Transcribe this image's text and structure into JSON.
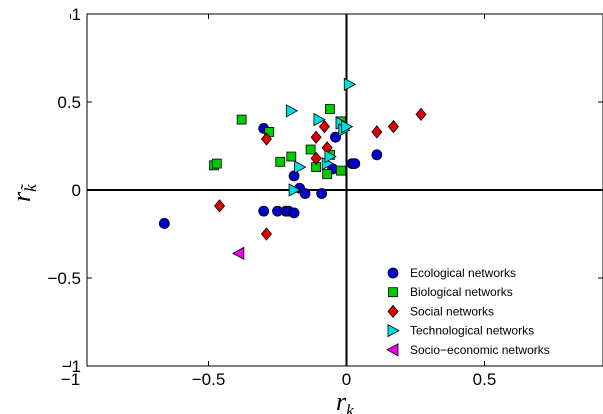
{
  "chart_data": {
    "type": "scatter",
    "title": "",
    "xlabel": "r",
    "xlabel_sub": "k",
    "ylabel": "r",
    "ylabel_sub": "k̃",
    "xlim": [
      -1,
      1
    ],
    "ylim": [
      -1,
      1
    ],
    "x_ticks": [
      -1,
      -0.5,
      0,
      0.5
    ],
    "x_tick_labels": [
      "−1",
      "−0.5",
      "0",
      "0.5"
    ],
    "y_ticks": [
      -1,
      -0.5,
      0,
      0.5,
      1
    ],
    "y_tick_labels": [
      "−1",
      "−0.5",
      "0",
      "0.5",
      "1"
    ],
    "grid": false,
    "zero_lines": true,
    "legend_position": "bottom-right",
    "series": [
      {
        "name": "Ecological networks",
        "marker": "circle",
        "color": "#0000cc",
        "points": [
          [
            -0.66,
            -0.19
          ],
          [
            -0.3,
            0.35
          ],
          [
            -0.3,
            -0.12
          ],
          [
            -0.25,
            -0.12
          ],
          [
            -0.22,
            -0.12
          ],
          [
            -0.21,
            -0.12
          ],
          [
            -0.19,
            -0.13
          ],
          [
            -0.19,
            0.08
          ],
          [
            -0.17,
            0.01
          ],
          [
            -0.15,
            -0.02
          ],
          [
            -0.09,
            -0.02
          ],
          [
            -0.04,
            0.3
          ],
          [
            0.02,
            0.15
          ],
          [
            0.03,
            0.15
          ],
          [
            0.11,
            0.2
          ],
          [
            -0.05,
            0.12
          ]
        ]
      },
      {
        "name": "Biological networks",
        "marker": "square",
        "color": "#00cc00",
        "points": [
          [
            -0.48,
            0.14
          ],
          [
            -0.47,
            0.15
          ],
          [
            -0.38,
            0.4
          ],
          [
            -0.28,
            0.33
          ],
          [
            -0.24,
            0.16
          ],
          [
            -0.2,
            0.19
          ],
          [
            -0.13,
            0.23
          ],
          [
            -0.07,
            0.09
          ],
          [
            -0.06,
            0.2
          ],
          [
            -0.06,
            0.46
          ],
          [
            -0.02,
            0.11
          ],
          [
            -0.02,
            0.39
          ],
          [
            -0.11,
            0.13
          ]
        ]
      },
      {
        "name": "Social networks",
        "marker": "diamond",
        "color": "#dd0000",
        "points": [
          [
            -0.46,
            -0.09
          ],
          [
            -0.29,
            -0.25
          ],
          [
            -0.29,
            0.29
          ],
          [
            -0.11,
            0.3
          ],
          [
            -0.11,
            0.18
          ],
          [
            -0.07,
            0.24
          ],
          [
            -0.08,
            0.36
          ],
          [
            0.11,
            0.33
          ],
          [
            0.17,
            0.36
          ],
          [
            0.27,
            0.43
          ]
        ]
      },
      {
        "name": "Technological networks",
        "marker": "triangle-right",
        "color": "#00dddd",
        "points": [
          [
            -0.2,
            0.45
          ],
          [
            -0.19,
            0.0
          ],
          [
            -0.17,
            0.13
          ],
          [
            -0.1,
            0.4
          ],
          [
            -0.07,
            0.15
          ],
          [
            -0.06,
            0.19
          ],
          [
            -0.02,
            0.38
          ],
          [
            -0.01,
            0.34
          ],
          [
            0.0,
            0.36
          ],
          [
            0.01,
            0.6
          ]
        ]
      },
      {
        "name": "Socio-economic networks",
        "marker": "triangle-left",
        "color": "#ee00ee",
        "points": [
          [
            -0.39,
            -0.36
          ]
        ]
      }
    ],
    "legend_labels": [
      "Ecological networks",
      "Biological networks",
      "Social networks",
      "Technological networks",
      "Socio−economic networks"
    ]
  }
}
